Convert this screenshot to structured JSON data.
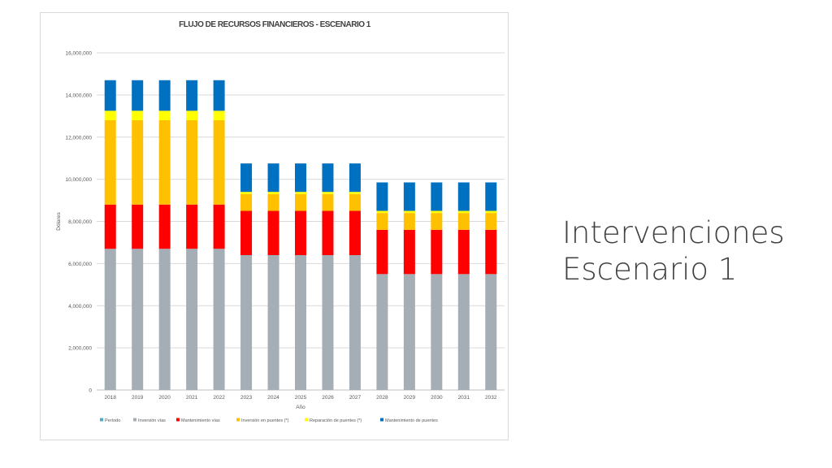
{
  "slide": {
    "title_line1": "Intervenciones",
    "title_line2": "Escenario 1"
  },
  "chart_data": {
    "type": "bar",
    "stacked": true,
    "title": "FLUJO DE RECURSOS FINANCIEROS - ESCENARIO 1",
    "xlabel": "Año",
    "ylabel": "Dólares",
    "ylim": [
      0,
      16000000
    ],
    "yticks": [
      0,
      2000000,
      4000000,
      6000000,
      8000000,
      10000000,
      12000000,
      14000000,
      16000000
    ],
    "ytick_labels": [
      "0",
      "2,000,000",
      "4,000,000",
      "6,000,000",
      "8,000,000",
      "10,000,000",
      "12,000,000",
      "14,000,000",
      "16,000,000"
    ],
    "grid": true,
    "legend_position": "bottom",
    "categories": [
      "2018",
      "2019",
      "2020",
      "2021",
      "2022",
      "2023",
      "2024",
      "2025",
      "2026",
      "2027",
      "2028",
      "2029",
      "2030",
      "2031",
      "2032"
    ],
    "series": [
      {
        "name": "Período",
        "color": "#4bacc6",
        "values": [
          0,
          0,
          0,
          0,
          0,
          0,
          0,
          0,
          0,
          0,
          0,
          0,
          0,
          0,
          0
        ]
      },
      {
        "name": "Inversión vías",
        "color": "#a5aeb5",
        "values": [
          6700000,
          6700000,
          6700000,
          6700000,
          6700000,
          6400000,
          6400000,
          6400000,
          6400000,
          6400000,
          5500000,
          5500000,
          5500000,
          5500000,
          5500000
        ]
      },
      {
        "name": "Mantenimiento vías",
        "color": "#ff0000",
        "values": [
          2100000,
          2100000,
          2100000,
          2100000,
          2100000,
          2100000,
          2100000,
          2100000,
          2100000,
          2100000,
          2100000,
          2100000,
          2100000,
          2100000,
          2100000
        ]
      },
      {
        "name": "Inversión en puentes (*)",
        "color": "#ffc000",
        "values": [
          4000000,
          4000000,
          4000000,
          4000000,
          4000000,
          800000,
          800000,
          800000,
          800000,
          800000,
          800000,
          800000,
          800000,
          800000,
          800000
        ]
      },
      {
        "name": "Reparación de puentes (*)",
        "color": "#ffff00",
        "values": [
          450000,
          450000,
          450000,
          450000,
          450000,
          100000,
          100000,
          100000,
          100000,
          100000,
          100000,
          100000,
          100000,
          100000,
          100000
        ]
      },
      {
        "name": "Mantenimiento de puentes",
        "color": "#0070c0",
        "values": [
          1450000,
          1450000,
          1450000,
          1450000,
          1450000,
          1350000,
          1350000,
          1350000,
          1350000,
          1350000,
          1350000,
          1350000,
          1350000,
          1350000,
          1350000
        ]
      }
    ]
  }
}
